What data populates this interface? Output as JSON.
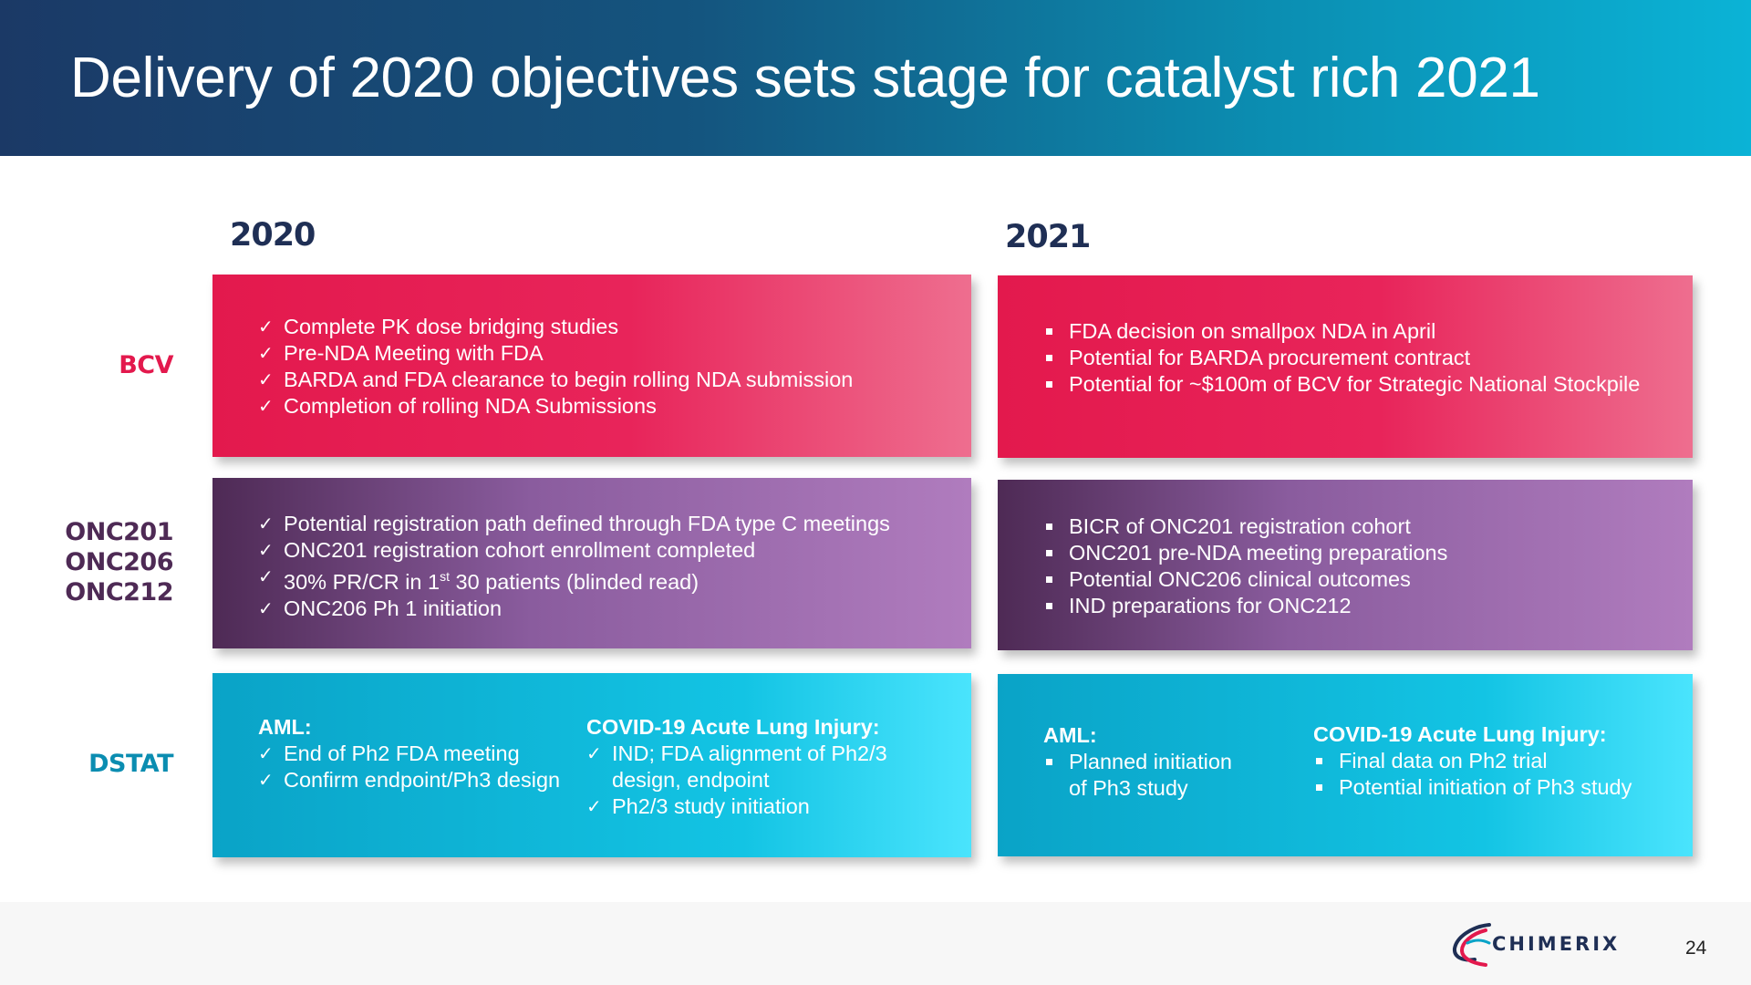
{
  "title": "Delivery of 2020 objectives sets stage for catalyst rich 2021",
  "years": {
    "y2020": "2020",
    "y2021": "2021"
  },
  "colors": {
    "bcv": "#e3194d",
    "onc": "#4e2a55",
    "dstat": "#0aa3c7",
    "navy": "#1f2f55"
  },
  "rows": {
    "bcv": {
      "label": "BCV",
      "y2020": [
        "Complete PK dose bridging studies",
        "Pre-NDA Meeting with FDA",
        "BARDA and FDA clearance to begin rolling NDA submission",
        "Completion of rolling NDA Submissions"
      ],
      "y2021": [
        "FDA decision on smallpox NDA in April",
        "Potential for BARDA procurement contract",
        "Potential for ~$100m of BCV for Strategic National Stockpile"
      ]
    },
    "onc": {
      "labels": [
        "ONC201",
        "ONC206",
        "ONC212"
      ],
      "y2020": {
        "item1": "Potential registration path defined through FDA type C meetings",
        "item2": "ONC201 registration cohort enrollment completed",
        "item3_pre": "30% PR/CR in 1",
        "item3_sup": "st",
        "item3_post": " 30 patients (blinded read)",
        "item4": "ONC206 Ph 1 initiation"
      },
      "y2021": [
        "BICR of ONC201 registration cohort",
        "ONC201 pre-NDA meeting preparations",
        "Potential ONC206 clinical outcomes",
        "IND preparations for ONC212"
      ]
    },
    "dstat": {
      "label": "DSTAT",
      "y2020": {
        "aml_head": "AML:",
        "aml_items": [
          "End of Ph2 FDA  meeting",
          "Confirm endpoint/Ph3 design"
        ],
        "covid_head": "COVID-19 Acute Lung Injury:",
        "covid_item1_line1": "IND; FDA alignment of Ph2/3",
        "covid_item1_line2": "design, endpoint",
        "covid_item2": "Ph2/3 study initiation"
      },
      "y2021": {
        "aml_head": "AML:",
        "aml_item_line1": "Planned initiation",
        "aml_item_line2": "of Ph3 study",
        "covid_head": "COVID-19 Acute Lung Injury:",
        "covid_items": [
          "Final data on Ph2 trial",
          "Potential initiation of Ph3 study"
        ]
      }
    }
  },
  "logo": {
    "text": "CHIMERIX",
    "icon": "chimerix-swoosh-icon"
  },
  "page_number": "24"
}
